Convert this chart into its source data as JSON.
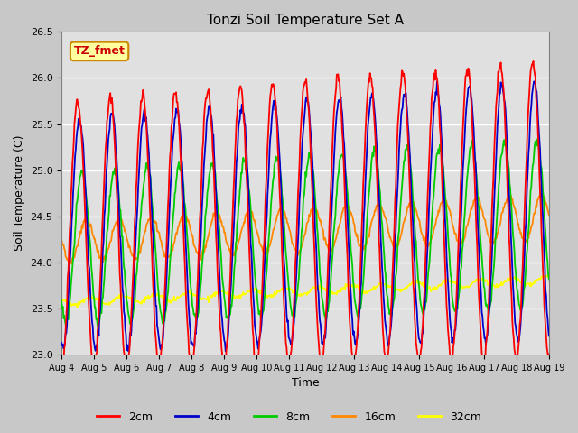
{
  "title": "Tonzi Soil Temperature Set A",
  "xlabel": "Time",
  "ylabel": "Soil Temperature (C)",
  "annotation": "TZ_fmet",
  "ylim": [
    23.0,
    26.5
  ],
  "series_colors": [
    "#ff0000",
    "#0000cc",
    "#00cc00",
    "#ff8800",
    "#ffff00"
  ],
  "series_labels": [
    "2cm",
    "4cm",
    "8cm",
    "16cm",
    "32cm"
  ],
  "fig_facecolor": "#c8c8c8",
  "ax_facecolor": "#e0e0e0",
  "n_points": 720,
  "days": 15
}
